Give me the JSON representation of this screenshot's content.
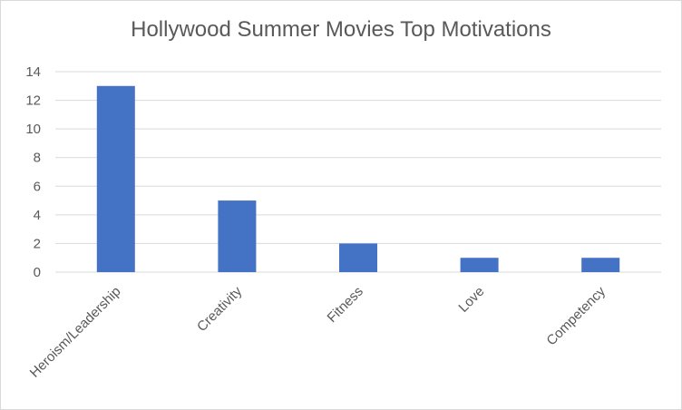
{
  "chart_data": {
    "type": "bar",
    "title": "Hollywood Summer Movies Top Motivations",
    "categories": [
      "Heroism/Leadership",
      "Creativity",
      "Fitness",
      "Love",
      "Competency"
    ],
    "values": [
      13,
      5,
      2,
      1,
      1
    ],
    "xlabel": "",
    "ylabel": "",
    "ylim": [
      0,
      14
    ],
    "yticks": [
      0,
      2,
      4,
      6,
      8,
      10,
      12,
      14
    ],
    "grid": true,
    "legend": "none",
    "colors": {
      "bar": "#4472c4",
      "grid": "#d9d9d9",
      "text": "#595959"
    }
  }
}
